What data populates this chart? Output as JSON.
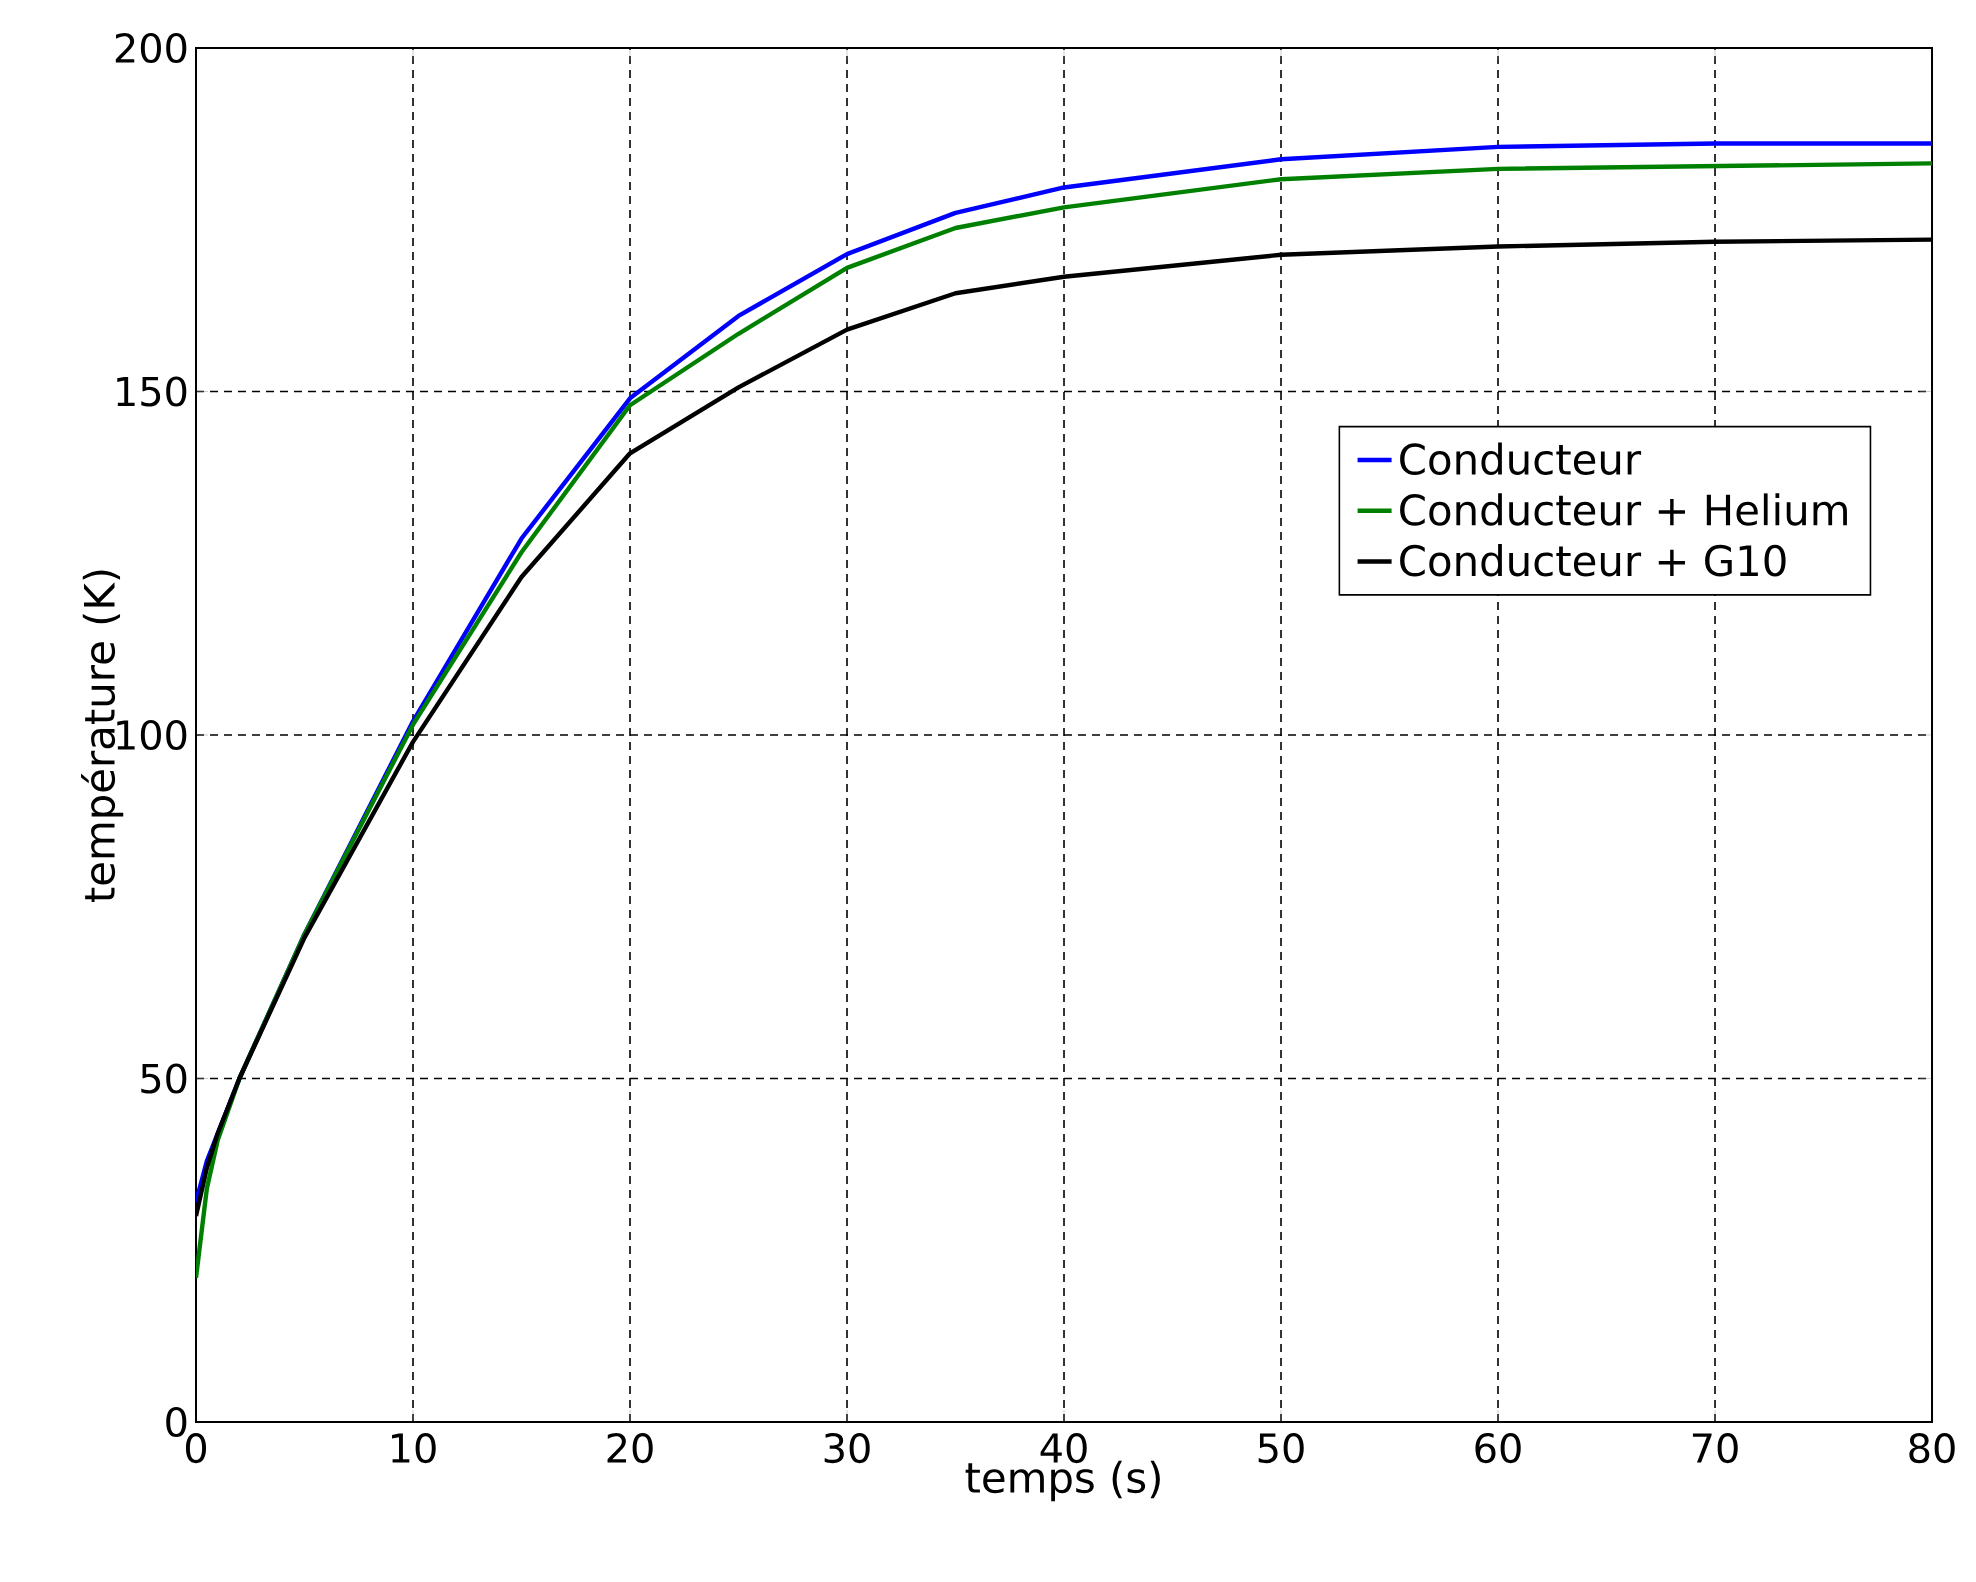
{
  "chart_data": {
    "type": "line",
    "xlabel": "temps (s)",
    "ylabel": "température (K)",
    "x": [
      0,
      0.5,
      1,
      2,
      5,
      10,
      15,
      20,
      25,
      30,
      35,
      40,
      50,
      60,
      70,
      80
    ],
    "series": [
      {
        "name": "Conducteur",
        "color": "#0000ff",
        "values": [
          32,
          38,
          42,
          50,
          71,
          102,
          128.6,
          149,
          161,
          170,
          176,
          179.7,
          183.8,
          185.6,
          186.1,
          186.1
        ]
      },
      {
        "name": "Conducteur + Helium",
        "color": "#008000",
        "values": [
          21,
          34,
          41,
          50,
          71,
          101.5,
          126.6,
          148,
          158.4,
          168,
          173.8,
          176.8,
          180.9,
          182.4,
          182.8,
          183.2
        ]
      },
      {
        "name": "Conducteur + G10",
        "color": "#000000",
        "values": [
          30,
          37,
          42,
          50,
          70.5,
          99,
          123,
          141,
          150.6,
          159,
          164.3,
          166.7,
          169.9,
          171.1,
          171.8,
          172.1
        ]
      }
    ],
    "xlim": [
      0,
      80
    ],
    "ylim": [
      0,
      200
    ],
    "xticks": [
      0,
      10,
      20,
      30,
      40,
      50,
      60,
      70,
      80
    ],
    "yticks": [
      0,
      50,
      100,
      150,
      200
    ],
    "grid": true,
    "legend": "right",
    "marker": "none",
    "line_style": "solid"
  }
}
